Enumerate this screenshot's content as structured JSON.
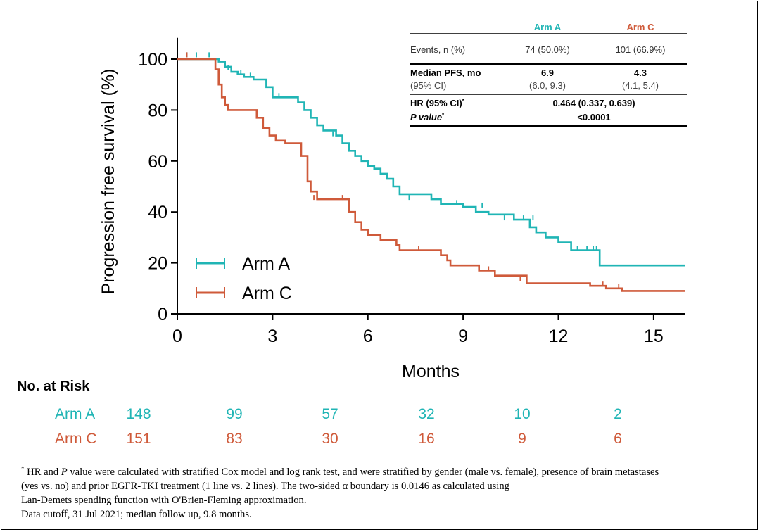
{
  "colors": {
    "arm_a": "#20b5b5",
    "arm_c": "#cf5a3a"
  },
  "chart_data": {
    "type": "line",
    "step": true,
    "xlabel": "Months",
    "ylabel": "Progression free survival (%)",
    "xlim": [
      0,
      16
    ],
    "ylim": [
      0,
      110
    ],
    "xticks": [
      0,
      3,
      6,
      9,
      12,
      15
    ],
    "yticks": [
      0,
      20,
      40,
      60,
      80,
      100
    ],
    "legend_position": "bottom-left",
    "series": [
      {
        "name": "Arm A",
        "color": "#20b5b5",
        "x": [
          0,
          1.3,
          1.5,
          1.7,
          1.9,
          2.1,
          2.4,
          2.8,
          3.0,
          3.8,
          4.0,
          4.2,
          4.4,
          4.6,
          5.0,
          5.2,
          5.4,
          5.6,
          5.8,
          6.0,
          6.2,
          6.4,
          6.6,
          6.8,
          7.0,
          8.0,
          8.3,
          9.0,
          9.4,
          9.8,
          10.6,
          11.1,
          11.3,
          11.6,
          12.0,
          12.4,
          13.3,
          16
        ],
        "y": [
          100,
          99,
          97,
          95,
          94,
          93,
          92,
          89,
          85,
          83,
          80,
          77,
          74,
          72,
          70,
          67,
          64,
          62,
          60,
          58,
          57,
          55,
          53,
          50,
          47,
          45,
          43,
          42,
          40,
          39,
          37,
          34,
          32,
          30,
          28,
          25,
          19,
          19
        ],
        "censor_x": [
          0.3,
          0.6,
          1.0,
          1.6,
          2.0,
          2.3,
          3.2,
          4.9,
          7.3,
          8.8,
          9.6,
          10.3,
          10.9,
          11.2,
          12.6,
          12.9,
          13.1,
          13.2
        ],
        "censor_y": [
          101,
          101,
          101,
          96,
          94,
          93,
          85,
          70,
          45,
          43,
          42,
          37,
          37,
          37,
          25,
          25,
          25,
          25
        ]
      },
      {
        "name": "Arm C",
        "color": "#cf5a3a",
        "x": [
          0,
          1.2,
          1.3,
          1.4,
          1.5,
          1.6,
          1.8,
          2.5,
          2.7,
          2.9,
          3.1,
          3.4,
          3.9,
          4.1,
          4.2,
          4.4,
          5.4,
          5.6,
          5.8,
          6.0,
          6.4,
          6.9,
          7.0,
          8.3,
          8.5,
          8.6,
          9.5,
          10.0,
          11.0,
          13.0,
          13.5,
          14.0,
          16
        ],
        "y": [
          100,
          96,
          90,
          85,
          82,
          80,
          80,
          77,
          73,
          70,
          68,
          67,
          62,
          52,
          48,
          45,
          40,
          36,
          33,
          31,
          29,
          27,
          25,
          23,
          21,
          19,
          17,
          15,
          12,
          11,
          10,
          9,
          9
        ],
        "censor_x": [
          0.3,
          4.3,
          5.2,
          7.6,
          9.8,
          10.8,
          13.4,
          13.9
        ],
        "censor_y": [
          101,
          45,
          45,
          25,
          17,
          13,
          11,
          10
        ]
      }
    ]
  },
  "table": {
    "columns": [
      "",
      "Arm A",
      "Arm C"
    ],
    "rows": [
      {
        "label": "Events, n (%)",
        "a": "74 (50.0%)",
        "c": "101 (66.9%)"
      },
      {
        "label": "Median PFS, mo",
        "sublabel": "(95% CI)",
        "a": "6.9",
        "a_sub": "(6.0, 9.3)",
        "c": "4.3",
        "c_sub": "(4.1, 5.4)"
      },
      {
        "label": "HR (95% CI)",
        "value": "0.464 (0.337, 0.639)"
      },
      {
        "label": "P value",
        "value": "<0.0001"
      }
    ],
    "asterisk": "*"
  },
  "risk": {
    "title": "No. at Risk",
    "rows": [
      {
        "label": "Arm A",
        "values": [
          "148",
          "99",
          "57",
          "32",
          "10",
          "2"
        ]
      },
      {
        "label": "Arm C",
        "values": [
          "151",
          "83",
          "30",
          "16",
          "9",
          "6"
        ]
      }
    ]
  },
  "footnote": {
    "asterisk": "*",
    "line1_a": " HR and ",
    "line1_p": "P",
    "line1_b": " value were calculated with stratified Cox model and log rank test, and were stratified by gender (male vs. female), presence of brain metastases",
    "line2": "(yes vs. no) and prior EGFR-TKI treatment (1 line vs. 2 lines). The two-sided α boundary is 0.0146 as calculated using",
    "line3": "Lan-Demets spending function with O'Brien-Fleming approximation.",
    "line4": "Data cutoff, 31 Jul 2021; median follow up, 9.8 months."
  }
}
